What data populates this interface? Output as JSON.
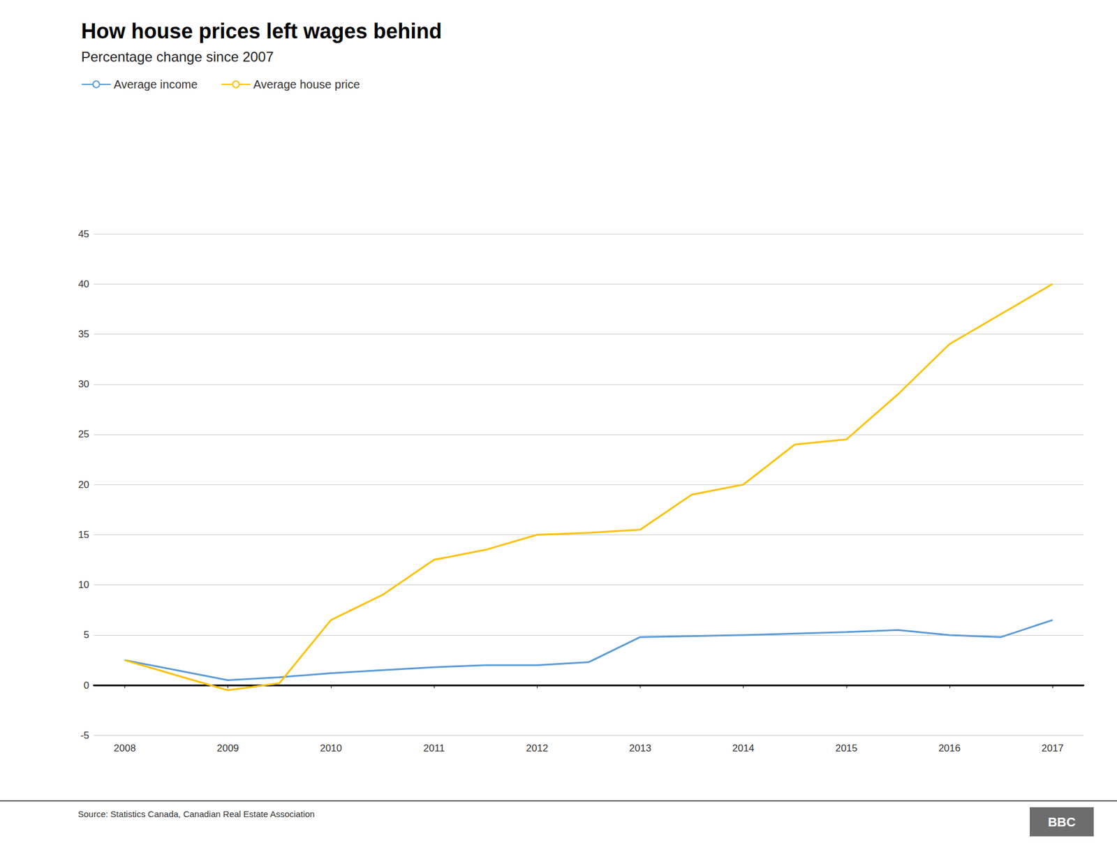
{
  "chart_data": {
    "type": "line",
    "title": "How house prices left wages behind",
    "subtitle": "Percentage change since 2007",
    "annotations": [
      "Source: Statistics Canada, Canadian Real Estate Association",
      "BBC"
    ],
    "series": [
      {
        "name": "Average income",
        "color": "#5B9BD5",
        "x": [
          2008,
          2008.5,
          2009,
          2009.5,
          2010,
          2010.5,
          2011,
          2011.5,
          2012,
          2012.5,
          2013,
          2014,
          2015,
          2015.5,
          2016,
          2016.5,
          2017
        ],
        "values": [
          2.5,
          1.5,
          0.5,
          0.8,
          1.2,
          1.5,
          1.8,
          2.0,
          2.0,
          2.3,
          4.8,
          5.0,
          5.3,
          5.5,
          5.0,
          4.8,
          6.5
        ]
      },
      {
        "name": "Average house price",
        "color": "#FFC000",
        "x": [
          2008,
          2008.5,
          2009,
          2009.5,
          2010,
          2010.5,
          2011,
          2011.5,
          2012,
          2012.5,
          2013,
          2013.5,
          2014,
          2014.5,
          2015,
          2015.5,
          2016,
          2016.5,
          2017
        ],
        "values": [
          2.5,
          1.0,
          -0.5,
          0.2,
          6.5,
          9.0,
          12.5,
          13.5,
          15.0,
          15.2,
          15.5,
          19.0,
          20.0,
          24.0,
          24.5,
          29.0,
          34.0,
          37.0,
          40.0
        ]
      }
    ],
    "xlim": [
      2007.7,
      2017.3
    ],
    "xticks": [
      2008,
      2009,
      2010,
      2011,
      2012,
      2013,
      2014,
      2015,
      2016,
      2017
    ],
    "ylim": [
      -5,
      45
    ],
    "yticks": [
      -5,
      0,
      5,
      10,
      15,
      20,
      25,
      30,
      35,
      40,
      45
    ],
    "grid": true,
    "legend": "top"
  }
}
